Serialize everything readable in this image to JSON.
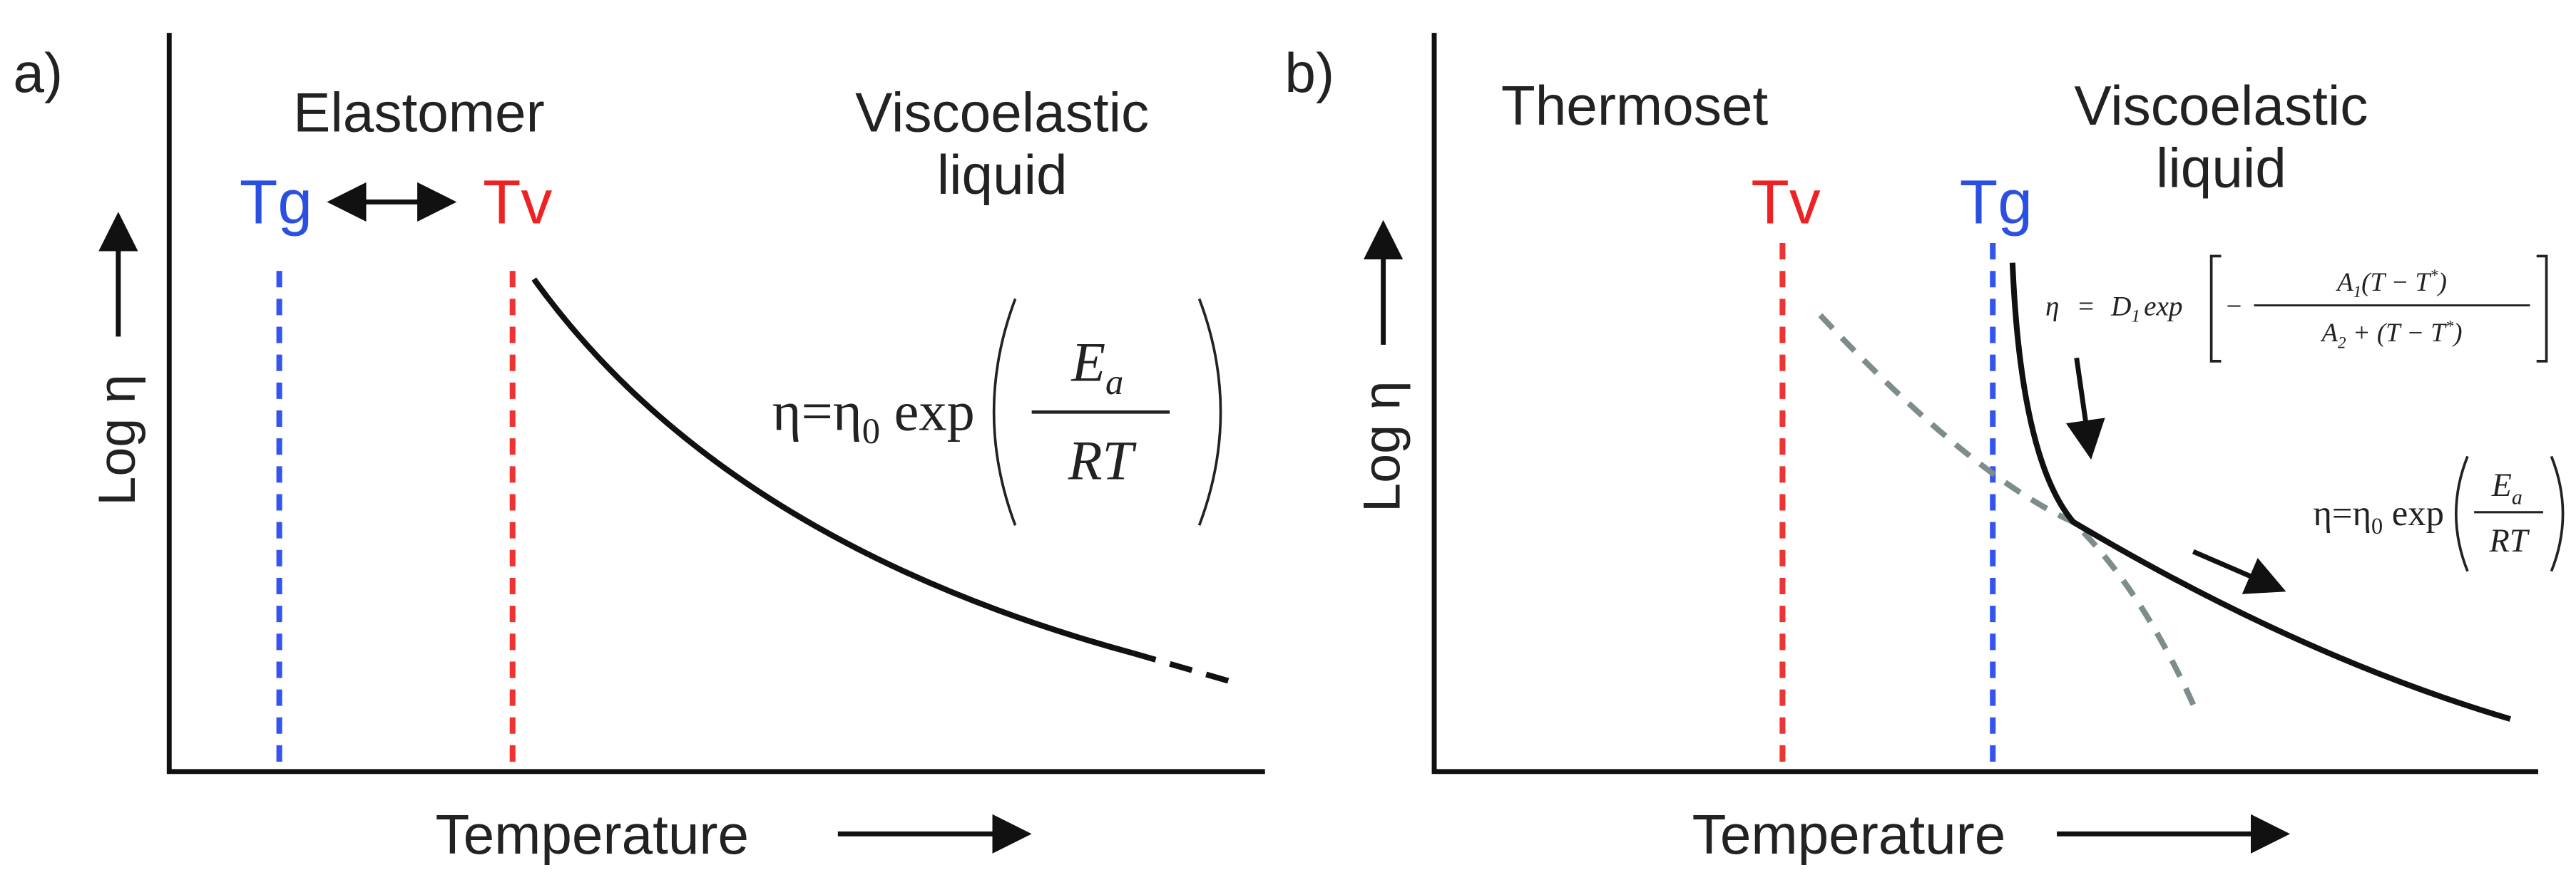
{
  "panel_a": {
    "label": "a)",
    "y_axis_label": "Log η",
    "x_axis_label": "Temperature",
    "region_left": "Elastomer",
    "region_right": [
      "Viscoelastic",
      "liquid"
    ],
    "tg": "Tg",
    "tv": "Tv",
    "equation": {
      "lhs": "η=η",
      "lhs_sub": "0",
      "func": " exp",
      "num": "E",
      "num_sub": "a",
      "den": "RT"
    }
  },
  "panel_b": {
    "label": "b)",
    "y_axis_label": "Log η",
    "x_axis_label": "Temperature",
    "region_left": "Thermoset",
    "region_right": [
      "Viscoelastic",
      "liquid"
    ],
    "tv": "Tv",
    "tg": "Tg",
    "equation_wlf": {
      "lhs": "η",
      "eq": "=",
      "coef": "D",
      "coef_sub": "1",
      "func": "exp",
      "minus": "−",
      "num": "A",
      "num_sub": "1",
      "num_rest": "(T − T",
      "num_star": "*",
      "num_close": ")",
      "den": "A",
      "den_sub": "2",
      "den_rest": " + (T − T",
      "den_star": "*",
      "den_close": ")"
    },
    "equation_arrhenius": {
      "lhs": "η=η",
      "lhs_sub": "0",
      "func": " exp",
      "num": "E",
      "num_sub": "a",
      "den": "RT"
    }
  }
}
